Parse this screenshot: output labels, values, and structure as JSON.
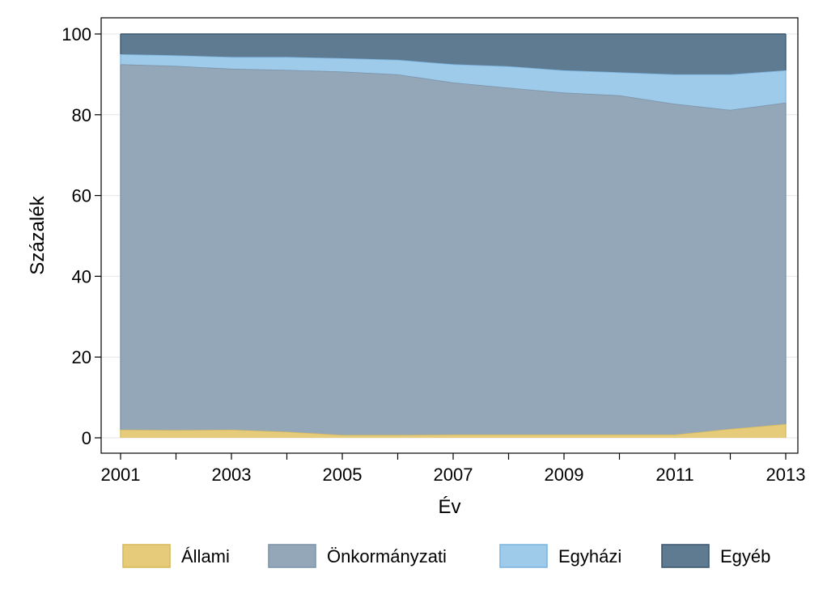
{
  "chart_data": {
    "type": "area",
    "stacked": true,
    "title": "",
    "xlabel": "Év",
    "ylabel": "Százalék",
    "x": [
      2001,
      2002,
      2003,
      2004,
      2005,
      2006,
      2007,
      2008,
      2009,
      2010,
      2011,
      2012,
      2013
    ],
    "xticks": [
      2001,
      2003,
      2005,
      2007,
      2009,
      2011,
      2013
    ],
    "yticks": [
      0,
      20,
      40,
      60,
      80,
      100
    ],
    "xlim": [
      2001,
      2013
    ],
    "ylim": [
      0,
      100
    ],
    "grid": "horizontal",
    "legend_position": "bottom",
    "series": [
      {
        "name": "Állami",
        "color": "#e6cc7a",
        "stroke": "#d9bb5c",
        "values": [
          2.0,
          1.9,
          2.0,
          1.5,
          0.7,
          0.7,
          0.8,
          0.8,
          0.8,
          0.8,
          0.8,
          2.2,
          3.4
        ]
      },
      {
        "name": "Önkormányzati",
        "color": "#93a7b8",
        "stroke": "#7d95ab",
        "values": [
          90.5,
          90.2,
          89.4,
          89.6,
          90.0,
          89.3,
          87.2,
          85.9,
          84.7,
          84.0,
          81.9,
          79.0,
          79.6
        ]
      },
      {
        "name": "Egyházi",
        "color": "#9ecbea",
        "stroke": "#7fb6e0",
        "values": [
          2.5,
          2.6,
          2.9,
          3.2,
          3.3,
          3.6,
          4.5,
          5.3,
          5.5,
          5.7,
          7.3,
          8.8,
          8.0
        ]
      },
      {
        "name": "Egyéb",
        "color": "#5f7b92",
        "stroke": "#3e5a70",
        "values": [
          5.0,
          5.3,
          5.7,
          5.7,
          6.0,
          6.4,
          7.5,
          8.0,
          9.0,
          9.5,
          10.0,
          10.0,
          9.0
        ]
      }
    ]
  }
}
